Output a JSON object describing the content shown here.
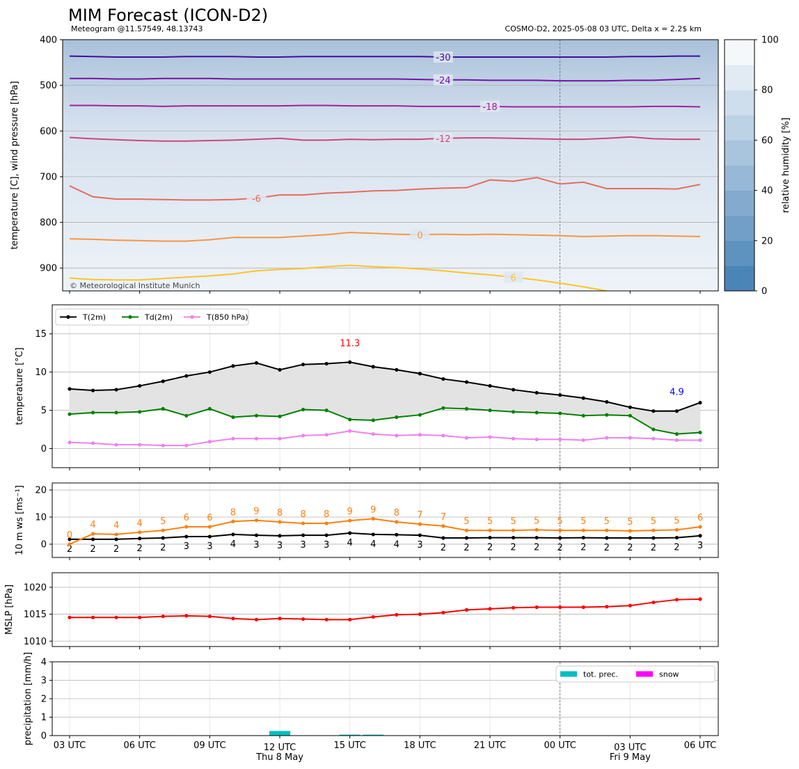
{
  "chart_data": [
    {
      "type": "contour",
      "title": "MIM Forecast (ICON-D2)",
      "subtitle": "Meteogram @11.57549, 48.13743",
      "info": "COSMO-D2, 2025-05-08 03 UTC, Delta x = 2.2$ km",
      "credit": "© Meteorological Institute Munich",
      "ylabel": "temperature [C], wind pressure [hPa]",
      "ylim": [
        950,
        400
      ],
      "yticks": [
        400,
        500,
        600,
        700,
        800,
        900
      ],
      "grid": true,
      "colorbar": {
        "label": "relative humidity [%]",
        "lim": [
          0,
          100
        ],
        "ticks": [
          0,
          20,
          40,
          60,
          80,
          100
        ],
        "colors": [
          "#4b85b8",
          "#f5f8fb"
        ]
      },
      "series": [
        {
          "name": "-30",
          "color": "#3d0f9e",
          "values": [
            436,
            437,
            438,
            438,
            438,
            437,
            437,
            437,
            438,
            438,
            437,
            437,
            437,
            437,
            437,
            437,
            438,
            438,
            438,
            438,
            438,
            438,
            438,
            438,
            437,
            437,
            436,
            436
          ]
        },
        {
          "name": "-24",
          "color": "#7513a8",
          "values": [
            485,
            485,
            486,
            486,
            485,
            485,
            485,
            486,
            486,
            486,
            486,
            486,
            486,
            486,
            486,
            487,
            488,
            488,
            489,
            489,
            489,
            490,
            490,
            490,
            489,
            489,
            487,
            485
          ]
        },
        {
          "name": "-18",
          "color": "#a3209a",
          "values": [
            544,
            544,
            545,
            545,
            546,
            545,
            545,
            545,
            545,
            545,
            544,
            544,
            545,
            545,
            545,
            546,
            546,
            546,
            546,
            547,
            547,
            547,
            547,
            547,
            547,
            546,
            546,
            547
          ]
        },
        {
          "name": "-12",
          "color": "#cc4778",
          "values": [
            614,
            617,
            619,
            621,
            622,
            622,
            621,
            620,
            618,
            616,
            620,
            620,
            618,
            619,
            618,
            618,
            616,
            615,
            615,
            616,
            617,
            618,
            618,
            616,
            613,
            617,
            618,
            618
          ]
        },
        {
          "name": "-6",
          "color": "#e56b5d",
          "values": [
            720,
            744,
            749,
            749,
            750,
            751,
            751,
            750,
            747,
            740,
            740,
            736,
            734,
            731,
            730,
            727,
            725,
            724,
            707,
            710,
            702,
            716,
            712,
            726,
            726,
            726,
            727,
            717
          ]
        },
        {
          "name": "0",
          "color": "#f89540",
          "values": [
            836,
            837,
            839,
            840,
            841,
            841,
            838,
            833,
            833,
            833,
            830,
            827,
            822,
            824,
            826,
            827,
            826,
            827,
            826,
            827,
            828,
            829,
            831,
            830,
            829,
            829,
            830,
            831
          ]
        },
        {
          "name": "6",
          "color": "#fdc328",
          "values": [
            922,
            925,
            926,
            926,
            923,
            920,
            917,
            913,
            906,
            903,
            901,
            897,
            894,
            897,
            899,
            902,
            906,
            911,
            915,
            920,
            926,
            933,
            941,
            950,
            null,
            null,
            null,
            null
          ]
        }
      ]
    },
    {
      "type": "line",
      "ylabel": "temperature [$^\\circ$C]",
      "ylim": [
        -2.5,
        18.8
      ],
      "yticks": [
        0,
        5,
        10,
        15
      ],
      "grid": true,
      "legend": "upper left",
      "fill_color": "#e3e3e3",
      "series": [
        {
          "name": "T(2m)",
          "color": "#000000",
          "values": [
            7.8,
            7.6,
            7.7,
            8.2,
            8.8,
            9.5,
            10.0,
            10.8,
            11.2,
            10.3,
            11.0,
            11.1,
            11.3,
            10.7,
            10.3,
            9.8,
            9.1,
            8.7,
            8.2,
            7.7,
            7.3,
            7.0,
            6.6,
            6.1,
            5.4,
            4.9,
            4.9,
            6.0
          ],
          "value_labels": [
            null,
            null,
            null,
            null,
            null,
            null,
            null,
            null,
            null,
            null,
            null,
            null,
            "11.3",
            null,
            null,
            null,
            null,
            null,
            null,
            null,
            null,
            null,
            null,
            null,
            null,
            null,
            "4.9",
            null
          ]
        },
        {
          "name": "Td(2m)",
          "color": "#008000",
          "values": [
            4.5,
            4.7,
            4.7,
            4.8,
            5.2,
            4.3,
            5.2,
            4.1,
            4.3,
            4.2,
            5.1,
            5.0,
            3.8,
            3.7,
            4.1,
            4.4,
            5.3,
            5.2,
            5.0,
            4.8,
            4.7,
            4.6,
            4.3,
            4.4,
            4.3,
            2.5,
            1.9,
            2.1
          ]
        },
        {
          "name": "T(850 hPa)",
          "color": "#ee82ee",
          "values": [
            0.8,
            0.7,
            0.5,
            0.5,
            0.4,
            0.4,
            0.9,
            1.3,
            1.3,
            1.3,
            1.7,
            1.8,
            2.3,
            1.9,
            1.7,
            1.8,
            1.7,
            1.4,
            1.5,
            1.3,
            1.2,
            1.2,
            1.1,
            1.4,
            1.4,
            1.3,
            1.1,
            1.1
          ]
        }
      ]
    },
    {
      "type": "line",
      "ylabel": "10 m ws [ms$^{-1}$]",
      "ylim": [
        -4.9,
        22.6
      ],
      "yticks": [
        0,
        10,
        20
      ],
      "grid": true,
      "series": [
        {
          "color": "#000000",
          "label_side": "below",
          "values": [
            1.8,
            1.8,
            1.8,
            2.1,
            2.3,
            2.8,
            2.8,
            3.6,
            3.3,
            3.1,
            3.3,
            3.3,
            4.1,
            3.6,
            3.5,
            3.3,
            2.3,
            2.3,
            2.4,
            2.4,
            2.4,
            2.3,
            2.4,
            2.3,
            2.3,
            2.3,
            2.4,
            3.1
          ],
          "value_labels": [
            "2",
            "2",
            "2",
            "2",
            "2",
            "3",
            "3",
            "4",
            "3",
            "3",
            "3",
            "3",
            "4",
            "4",
            "4",
            "3",
            "2",
            "2",
            "2",
            "2",
            "2",
            "2",
            "2",
            "2",
            "2",
            "2",
            "2",
            "3"
          ]
        },
        {
          "color": "#ff7f0e",
          "label_side": "above",
          "values": [
            0,
            3.8,
            3.6,
            4.4,
            5.1,
            6.4,
            6.4,
            8.4,
            8.8,
            8.2,
            7.7,
            7.7,
            8.7,
            9.4,
            8.2,
            7.4,
            6.7,
            5.1,
            5.1,
            5.1,
            5.3,
            5.1,
            5.1,
            5.1,
            4.9,
            5.1,
            5.3,
            6.4
          ],
          "value_labels": [
            "0",
            "4",
            "4",
            "4",
            "5",
            "6",
            "6",
            "8",
            "9",
            "8",
            "8",
            "8",
            "9",
            "9",
            "8",
            "7",
            "7",
            "5",
            "5",
            "5",
            "5",
            "5",
            "5",
            "5",
            "5",
            "5",
            "5",
            "6"
          ]
        }
      ]
    },
    {
      "type": "line",
      "ylabel": "MSLP [hPa]",
      "ylim": [
        1009.0,
        1022.7
      ],
      "yticks": [
        1010,
        1015,
        1020
      ],
      "grid": true,
      "series": [
        {
          "color": "#ff0000",
          "values": [
            1014.4,
            1014.4,
            1014.4,
            1014.4,
            1014.6,
            1014.7,
            1014.6,
            1014.2,
            1014.0,
            1014.2,
            1014.1,
            1014.0,
            1014.0,
            1014.5,
            1014.9,
            1015.0,
            1015.3,
            1015.8,
            1016.0,
            1016.2,
            1016.3,
            1016.3,
            1016.3,
            1016.4,
            1016.6,
            1017.2,
            1017.7,
            1017.8
          ]
        }
      ]
    },
    {
      "type": "bar",
      "ylabel": "precipitation [mm/h]",
      "ylim": [
        0,
        4
      ],
      "yticks": [
        0,
        1,
        2,
        3,
        4
      ],
      "grid": true,
      "legend": "upper right",
      "categories": [
        "03 UTC",
        null,
        null,
        "06 UTC",
        null,
        null,
        "09 UTC",
        null,
        null,
        "12 UTC",
        null,
        null,
        "15 UTC",
        null,
        null,
        "18 UTC",
        null,
        null,
        "21 UTC",
        null,
        null,
        "00 UTC",
        null,
        null,
        "03 UTC",
        null,
        null,
        "06 UTC"
      ],
      "dates": [
        null,
        null,
        null,
        null,
        null,
        null,
        null,
        null,
        null,
        "Thu 8 May",
        null,
        null,
        null,
        null,
        null,
        null,
        null,
        null,
        null,
        null,
        null,
        null,
        null,
        null,
        "Fri 9 May",
        null,
        null,
        null
      ],
      "series": [
        {
          "name": "tot. prec.",
          "color": "#00bfbf",
          "values": [
            0,
            0.02,
            0.02,
            0.02,
            0.02,
            0.02,
            0.02,
            0,
            0.02,
            0.25,
            0.02,
            0.02,
            0.05,
            0.05,
            0.02,
            0.02,
            0.02,
            0,
            0,
            0,
            0,
            0,
            0,
            0,
            0,
            0,
            0,
            0
          ]
        },
        {
          "name": "snow",
          "color": "#ff00ff",
          "values": [
            0,
            0,
            0,
            0,
            0,
            0,
            0,
            0,
            0,
            0,
            0,
            0,
            0,
            0,
            0,
            0,
            0,
            0,
            0,
            0,
            0,
            0,
            0,
            0,
            0,
            0,
            0,
            0
          ]
        }
      ]
    }
  ]
}
